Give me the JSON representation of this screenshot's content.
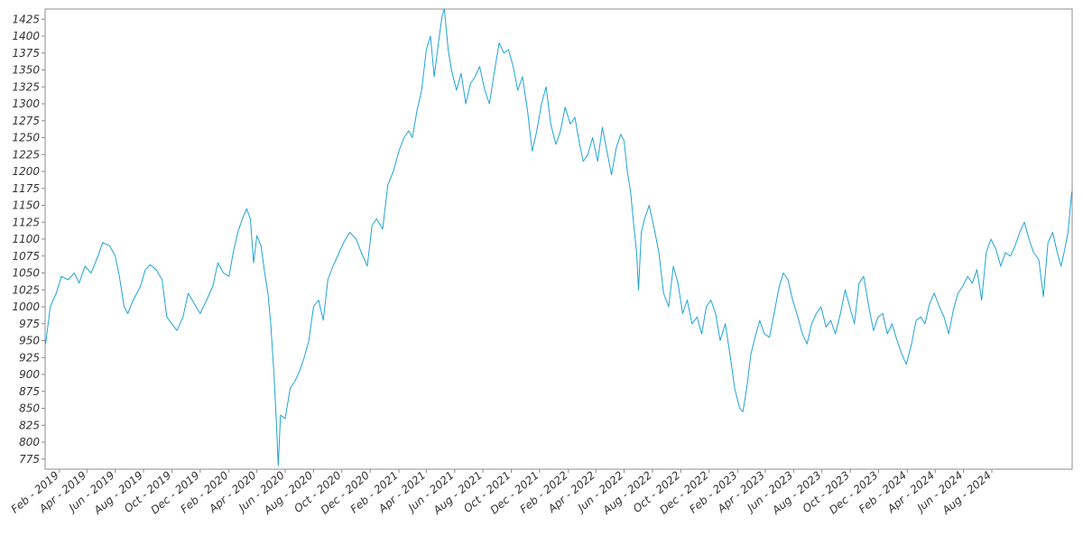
{
  "chart_data": {
    "type": "line",
    "title": "",
    "xlabel": "",
    "ylabel": "",
    "ylim": [
      760,
      1440
    ],
    "x_ticks": [
      "Feb - 2019",
      "Apr - 2019",
      "Jun - 2019",
      "Aug - 2019",
      "Oct - 2019",
      "Dec - 2019",
      "Feb - 2020",
      "Apr - 2020",
      "Jun - 2020",
      "Aug - 2020",
      "Oct - 2020",
      "Dec - 2020",
      "Feb - 2021",
      "Apr - 2021",
      "Jun - 2021",
      "Aug - 2021",
      "Oct - 2021",
      "Dec - 2021",
      "Feb - 2022",
      "Apr - 2022",
      "Jun - 2022",
      "Aug - 2022",
      "Oct - 2022",
      "Dec - 2022",
      "Feb - 2023",
      "Apr - 2023",
      "Jun - 2023",
      "Aug - 2023",
      "Oct - 2023",
      "Dec - 2023",
      "Feb - 2024",
      "Apr - 2024",
      "Jun - 2024",
      "Aug - 2024"
    ],
    "y_ticks": [
      775,
      800,
      825,
      850,
      875,
      900,
      925,
      950,
      975,
      1000,
      1025,
      1050,
      1075,
      1100,
      1125,
      1150,
      1175,
      1200,
      1225,
      1250,
      1275,
      1300,
      1325,
      1350,
      1375,
      1400,
      1425
    ],
    "grid": false,
    "series": [
      {
        "color": "#1fa3d4",
        "points": [
          [
            "2019-01-02",
            945
          ],
          [
            "2019-01-12",
            1000
          ],
          [
            "2019-01-25",
            1020
          ],
          [
            "2019-02-05",
            1045
          ],
          [
            "2019-02-20",
            1040
          ],
          [
            "2019-03-05",
            1050
          ],
          [
            "2019-03-15",
            1035
          ],
          [
            "2019-03-28",
            1060
          ],
          [
            "2019-04-10",
            1050
          ],
          [
            "2019-04-25",
            1075
          ],
          [
            "2019-05-05",
            1095
          ],
          [
            "2019-05-20",
            1090
          ],
          [
            "2019-06-01",
            1075
          ],
          [
            "2019-06-10",
            1045
          ],
          [
            "2019-06-20",
            1000
          ],
          [
            "2019-06-28",
            990
          ],
          [
            "2019-07-10",
            1010
          ],
          [
            "2019-07-25",
            1030
          ],
          [
            "2019-08-05",
            1055
          ],
          [
            "2019-08-15",
            1062
          ],
          [
            "2019-08-28",
            1055
          ],
          [
            "2019-09-10",
            1040
          ],
          [
            "2019-09-20",
            985
          ],
          [
            "2019-10-01",
            975
          ],
          [
            "2019-10-12",
            965
          ],
          [
            "2019-10-25",
            985
          ],
          [
            "2019-11-05",
            1020
          ],
          [
            "2019-11-18",
            1005
          ],
          [
            "2019-12-01",
            990
          ],
          [
            "2019-12-15",
            1010
          ],
          [
            "2019-12-28",
            1030
          ],
          [
            "2020-01-08",
            1065
          ],
          [
            "2020-01-20",
            1050
          ],
          [
            "2020-02-01",
            1045
          ],
          [
            "2020-02-10",
            1080
          ],
          [
            "2020-02-20",
            1110
          ],
          [
            "2020-03-01",
            1130
          ],
          [
            "2020-03-10",
            1145
          ],
          [
            "2020-03-18",
            1130
          ],
          [
            "2020-03-25",
            1065
          ],
          [
            "2020-04-01",
            1105
          ],
          [
            "2020-04-10",
            1090
          ],
          [
            "2020-04-18",
            1050
          ],
          [
            "2020-04-25",
            1020
          ],
          [
            "2020-05-01",
            975
          ],
          [
            "2020-05-08",
            900
          ],
          [
            "2020-05-13",
            830
          ],
          [
            "2020-05-17",
            765
          ],
          [
            "2020-05-22",
            840
          ],
          [
            "2020-06-01",
            835
          ],
          [
            "2020-06-12",
            880
          ],
          [
            "2020-06-22",
            890
          ],
          [
            "2020-07-02",
            905
          ],
          [
            "2020-07-12",
            925
          ],
          [
            "2020-07-22",
            950
          ],
          [
            "2020-08-01",
            1000
          ],
          [
            "2020-08-12",
            1010
          ],
          [
            "2020-08-22",
            980
          ],
          [
            "2020-09-01",
            1040
          ],
          [
            "2020-09-12",
            1060
          ],
          [
            "2020-09-25",
            1080
          ],
          [
            "2020-10-05",
            1095
          ],
          [
            "2020-10-18",
            1110
          ],
          [
            "2020-11-01",
            1100
          ],
          [
            "2020-11-12",
            1080
          ],
          [
            "2020-11-25",
            1060
          ],
          [
            "2020-12-05",
            1120
          ],
          [
            "2020-12-15",
            1130
          ],
          [
            "2020-12-28",
            1115
          ],
          [
            "2021-01-08",
            1180
          ],
          [
            "2021-01-20",
            1200
          ],
          [
            "2021-02-01",
            1230
          ],
          [
            "2021-02-12",
            1250
          ],
          [
            "2021-02-22",
            1260
          ],
          [
            "2021-03-02",
            1250
          ],
          [
            "2021-03-12",
            1290
          ],
          [
            "2021-03-22",
            1320
          ],
          [
            "2021-04-01",
            1380
          ],
          [
            "2021-04-10",
            1400
          ],
          [
            "2021-04-18",
            1340
          ],
          [
            "2021-04-28",
            1395
          ],
          [
            "2021-05-05",
            1430
          ],
          [
            "2021-05-10",
            1440
          ],
          [
            "2021-05-18",
            1380
          ],
          [
            "2021-05-25",
            1350
          ],
          [
            "2021-06-05",
            1320
          ],
          [
            "2021-06-15",
            1345
          ],
          [
            "2021-06-25",
            1300
          ],
          [
            "2021-07-05",
            1330
          ],
          [
            "2021-07-15",
            1340
          ],
          [
            "2021-07-25",
            1355
          ],
          [
            "2021-08-05",
            1320
          ],
          [
            "2021-08-15",
            1300
          ],
          [
            "2021-08-25",
            1345
          ],
          [
            "2021-09-05",
            1390
          ],
          [
            "2021-09-15",
            1375
          ],
          [
            "2021-09-25",
            1380
          ],
          [
            "2021-10-05",
            1355
          ],
          [
            "2021-10-15",
            1320
          ],
          [
            "2021-10-25",
            1340
          ],
          [
            "2021-11-05",
            1290
          ],
          [
            "2021-11-15",
            1230
          ],
          [
            "2021-11-25",
            1260
          ],
          [
            "2021-12-05",
            1300
          ],
          [
            "2021-12-15",
            1325
          ],
          [
            "2021-12-25",
            1270
          ],
          [
            "2022-01-05",
            1240
          ],
          [
            "2022-01-15",
            1260
          ],
          [
            "2022-01-25",
            1295
          ],
          [
            "2022-02-05",
            1270
          ],
          [
            "2022-02-15",
            1280
          ],
          [
            "2022-02-25",
            1240
          ],
          [
            "2022-03-05",
            1215
          ],
          [
            "2022-03-15",
            1225
          ],
          [
            "2022-03-25",
            1250
          ],
          [
            "2022-04-05",
            1215
          ],
          [
            "2022-04-15",
            1265
          ],
          [
            "2022-04-25",
            1230
          ],
          [
            "2022-05-05",
            1195
          ],
          [
            "2022-05-15",
            1235
          ],
          [
            "2022-05-25",
            1255
          ],
          [
            "2022-06-01",
            1245
          ],
          [
            "2022-06-08",
            1200
          ],
          [
            "2022-06-15",
            1170
          ],
          [
            "2022-06-22",
            1120
          ],
          [
            "2022-06-28",
            1080
          ],
          [
            "2022-07-02",
            1025
          ],
          [
            "2022-07-08",
            1110
          ],
          [
            "2022-07-15",
            1130
          ],
          [
            "2022-07-25",
            1150
          ],
          [
            "2022-08-05",
            1115
          ],
          [
            "2022-08-15",
            1080
          ],
          [
            "2022-08-25",
            1020
          ],
          [
            "2022-09-05",
            1000
          ],
          [
            "2022-09-15",
            1060
          ],
          [
            "2022-09-25",
            1035
          ],
          [
            "2022-10-05",
            990
          ],
          [
            "2022-10-15",
            1010
          ],
          [
            "2022-10-25",
            975
          ],
          [
            "2022-11-05",
            985
          ],
          [
            "2022-11-15",
            960
          ],
          [
            "2022-11-25",
            1000
          ],
          [
            "2022-12-05",
            1010
          ],
          [
            "2022-12-15",
            990
          ],
          [
            "2022-12-25",
            950
          ],
          [
            "2023-01-05",
            975
          ],
          [
            "2023-01-15",
            930
          ],
          [
            "2023-01-25",
            880
          ],
          [
            "2023-02-05",
            850
          ],
          [
            "2023-02-12",
            845
          ],
          [
            "2023-02-20",
            880
          ],
          [
            "2023-03-01",
            930
          ],
          [
            "2023-03-10",
            955
          ],
          [
            "2023-03-20",
            980
          ],
          [
            "2023-03-30",
            960
          ],
          [
            "2023-04-10",
            955
          ],
          [
            "2023-04-20",
            990
          ],
          [
            "2023-05-01",
            1030
          ],
          [
            "2023-05-10",
            1050
          ],
          [
            "2023-05-20",
            1040
          ],
          [
            "2023-05-30",
            1010
          ],
          [
            "2023-06-10",
            985
          ],
          [
            "2023-06-20",
            960
          ],
          [
            "2023-06-30",
            945
          ],
          [
            "2023-07-10",
            975
          ],
          [
            "2023-07-20",
            990
          ],
          [
            "2023-07-30",
            1000
          ],
          [
            "2023-08-10",
            970
          ],
          [
            "2023-08-20",
            980
          ],
          [
            "2023-08-30",
            960
          ],
          [
            "2023-09-10",
            990
          ],
          [
            "2023-09-20",
            1025
          ],
          [
            "2023-09-30",
            1000
          ],
          [
            "2023-10-10",
            975
          ],
          [
            "2023-10-20",
            1035
          ],
          [
            "2023-10-30",
            1045
          ],
          [
            "2023-11-10",
            1000
          ],
          [
            "2023-11-20",
            965
          ],
          [
            "2023-11-30",
            985
          ],
          [
            "2023-12-10",
            990
          ],
          [
            "2023-12-20",
            960
          ],
          [
            "2023-12-30",
            975
          ],
          [
            "2024-01-10",
            950
          ],
          [
            "2024-01-20",
            930
          ],
          [
            "2024-01-30",
            915
          ],
          [
            "2024-02-10",
            945
          ],
          [
            "2024-02-20",
            980
          ],
          [
            "2024-03-01",
            985
          ],
          [
            "2024-03-10",
            975
          ],
          [
            "2024-03-20",
            1005
          ],
          [
            "2024-03-30",
            1020
          ],
          [
            "2024-04-10",
            1000
          ],
          [
            "2024-04-20",
            985
          ],
          [
            "2024-04-30",
            960
          ],
          [
            "2024-05-10",
            995
          ],
          [
            "2024-05-20",
            1020
          ],
          [
            "2024-05-30",
            1030
          ],
          [
            "2024-06-10",
            1045
          ],
          [
            "2024-06-20",
            1035
          ],
          [
            "2024-06-30",
            1055
          ],
          [
            "2024-07-10",
            1010
          ],
          [
            "2024-07-20",
            1080
          ],
          [
            "2024-07-30",
            1100
          ],
          [
            "2024-08-10",
            1085
          ],
          [
            "2024-08-20",
            1060
          ],
          [
            "2024-08-30",
            1080
          ],
          [
            "2024-09-10",
            1075
          ],
          [
            "2024-09-20",
            1090
          ],
          [
            "2024-09-30",
            1110
          ],
          [
            "2024-10-10",
            1125
          ],
          [
            "2024-10-20",
            1100
          ],
          [
            "2024-10-30",
            1080
          ],
          [
            "2024-11-10",
            1070
          ],
          [
            "2024-11-20",
            1015
          ],
          [
            "2024-11-30",
            1095
          ],
          [
            "2024-12-10",
            1110
          ],
          [
            "2024-12-20",
            1080
          ],
          [
            "2024-12-28",
            1060
          ],
          [
            "2025-01-05",
            1085
          ],
          [
            "2025-01-12",
            1110
          ],
          [
            "2025-01-20",
            1170
          ]
        ]
      }
    ]
  }
}
